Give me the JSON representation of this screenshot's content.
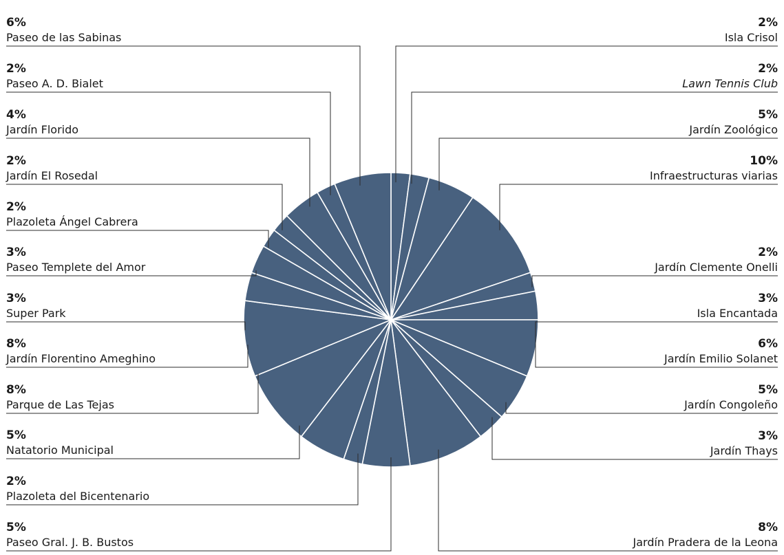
{
  "chart_data": {
    "type": "pie",
    "title": "",
    "color": "#48617f",
    "slices": [
      {
        "label": "Isla  Crisol",
        "value": 2,
        "value_label": "2%",
        "italic": false
      },
      {
        "label": "Lawn Tennis Club",
        "value": 2,
        "value_label": "2%",
        "italic": true
      },
      {
        "label": "Jardín Zoológico",
        "value": 5,
        "value_label": "5%",
        "italic": false
      },
      {
        "label": "Infraestructuras viarias",
        "value": 10,
        "value_label": "10%",
        "italic": false
      },
      {
        "label": "Jardín Clemente Onelli",
        "value": 2,
        "value_label": "2%",
        "italic": false
      },
      {
        "label": "Isla Encantada",
        "value": 3,
        "value_label": "3%",
        "italic": false
      },
      {
        "label": "Jardín Emilio Solanet",
        "value": 6,
        "value_label": "6%",
        "italic": false
      },
      {
        "label": "Jardín Congoleño",
        "value": 5,
        "value_label": "5%",
        "italic": false
      },
      {
        "label": "Jardín Thays",
        "value": 3,
        "value_label": "3%",
        "italic": false
      },
      {
        "label": "Jardín Pradera de la Leona",
        "value": 8,
        "value_label": "8%",
        "italic": false
      },
      {
        "label": "Paseo Gral. J. B. Bustos",
        "value": 5,
        "value_label": "5%",
        "italic": false
      },
      {
        "label": "Plazoleta del Bicentenario",
        "value": 2,
        "value_label": "2%",
        "italic": false
      },
      {
        "label": "Natatorio Municipal",
        "value": 5,
        "value_label": "5%",
        "italic": false
      },
      {
        "label": "Parque de Las Tejas",
        "value": 8,
        "value_label": "8%",
        "italic": false
      },
      {
        "label": "Jardín Florentino Ameghino",
        "value": 8,
        "value_label": "8%",
        "italic": false
      },
      {
        "label": "Super Park",
        "value": 3,
        "value_label": "3%",
        "italic": false
      },
      {
        "label": "Paseo Templete del Amor",
        "value": 3,
        "value_label": "3%",
        "italic": false
      },
      {
        "label": "Plazoleta Ángel Cabrera",
        "value": 2,
        "value_label": "2%",
        "italic": false
      },
      {
        "label": "Jardín El Rosedal",
        "value": 2,
        "value_label": "2%",
        "italic": false
      },
      {
        "label": "Jardín Florido",
        "value": 4,
        "value_label": "4%",
        "italic": false
      },
      {
        "label": "Paseo A. D. Bialet",
        "value": 2,
        "value_label": "2%",
        "italic": false
      },
      {
        "label": "Paseo de las Sabinas",
        "value": 6,
        "value_label": "6%",
        "italic": false
      }
    ]
  }
}
